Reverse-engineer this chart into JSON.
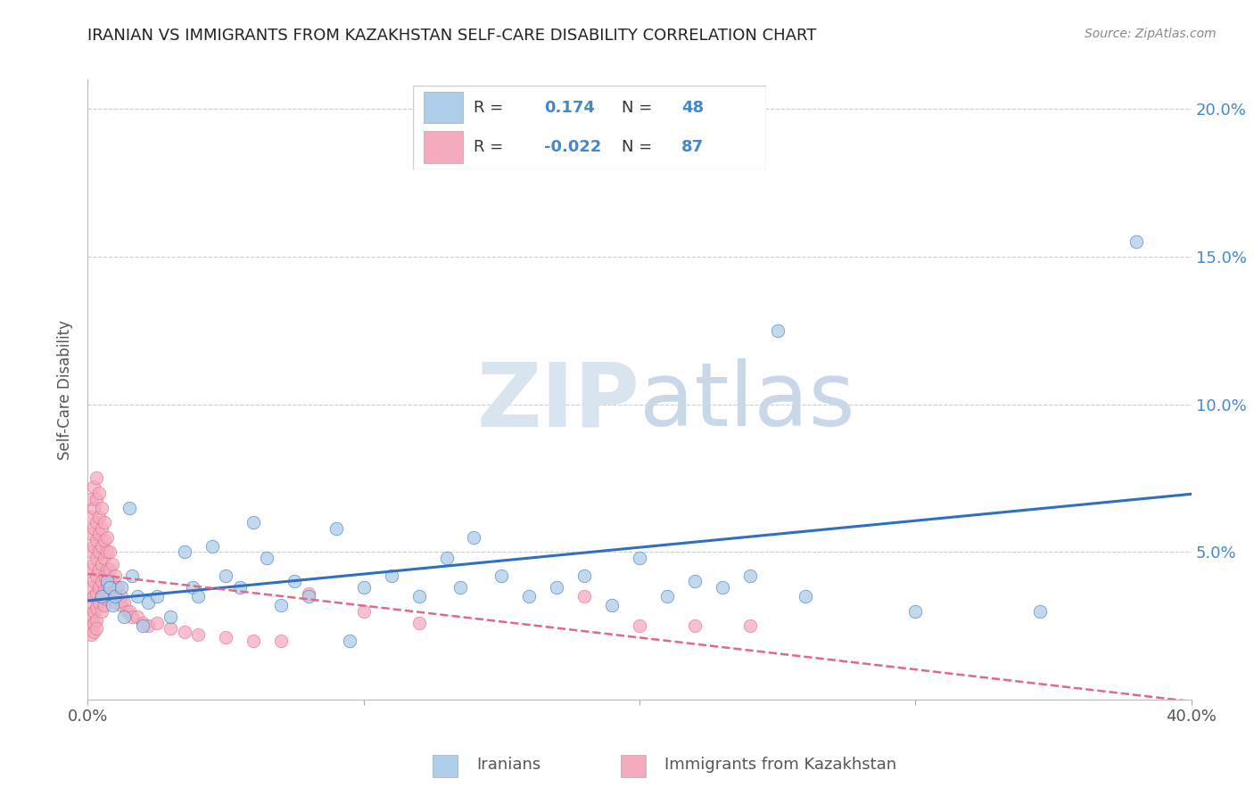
{
  "title": "IRANIAN VS IMMIGRANTS FROM KAZAKHSTAN SELF-CARE DISABILITY CORRELATION CHART",
  "source": "Source: ZipAtlas.com",
  "ylabel": "Self-Care Disability",
  "xlabel": "",
  "xlim": [
    0.0,
    0.4
  ],
  "ylim": [
    0.0,
    0.21
  ],
  "yticks": [
    0.0,
    0.05,
    0.1,
    0.15,
    0.2
  ],
  "ytick_labels": [
    "",
    "5.0%",
    "10.0%",
    "15.0%",
    "20.0%"
  ],
  "xticks": [
    0.0,
    0.1,
    0.2,
    0.3,
    0.4
  ],
  "xtick_labels": [
    "0.0%",
    "",
    "",
    "",
    "40.0%"
  ],
  "r_iranian": 0.174,
  "n_iranian": 48,
  "r_kazakh": -0.022,
  "n_kazakh": 87,
  "iranian_color": "#aecde8",
  "kazakh_color": "#f4abbe",
  "iranian_line_color": "#3070c0",
  "kazakh_line_color": "#e06888",
  "grid_color": "#cccccc",
  "title_color": "#222222",
  "axis_label_color": "#555555",
  "right_axis_color": "#4488cc",
  "watermark_zip_color": "#d8e4f0",
  "watermark_atlas_color": "#c8d8e8",
  "iranians_x": [
    0.005,
    0.007,
    0.008,
    0.009,
    0.01,
    0.012,
    0.013,
    0.015,
    0.016,
    0.018,
    0.02,
    0.022,
    0.025,
    0.03,
    0.035,
    0.038,
    0.04,
    0.045,
    0.05,
    0.055,
    0.06,
    0.065,
    0.07,
    0.075,
    0.08,
    0.09,
    0.095,
    0.1,
    0.11,
    0.12,
    0.13,
    0.135,
    0.14,
    0.15,
    0.16,
    0.17,
    0.18,
    0.19,
    0.2,
    0.21,
    0.22,
    0.23,
    0.24,
    0.25,
    0.26,
    0.3,
    0.345,
    0.38
  ],
  "iranians_y": [
    0.035,
    0.04,
    0.038,
    0.032,
    0.035,
    0.038,
    0.028,
    0.065,
    0.042,
    0.035,
    0.025,
    0.033,
    0.035,
    0.028,
    0.05,
    0.038,
    0.035,
    0.052,
    0.042,
    0.038,
    0.06,
    0.048,
    0.032,
    0.04,
    0.035,
    0.058,
    0.02,
    0.038,
    0.042,
    0.035,
    0.048,
    0.038,
    0.055,
    0.042,
    0.035,
    0.038,
    0.042,
    0.032,
    0.048,
    0.035,
    0.04,
    0.038,
    0.042,
    0.125,
    0.035,
    0.03,
    0.03,
    0.155
  ],
  "kazakh_x": [
    0.001,
    0.001,
    0.001,
    0.001,
    0.001,
    0.001,
    0.001,
    0.001,
    0.001,
    0.001,
    0.002,
    0.002,
    0.002,
    0.002,
    0.002,
    0.002,
    0.002,
    0.002,
    0.002,
    0.002,
    0.003,
    0.003,
    0.003,
    0.003,
    0.003,
    0.003,
    0.003,
    0.003,
    0.003,
    0.003,
    0.004,
    0.004,
    0.004,
    0.004,
    0.004,
    0.004,
    0.004,
    0.005,
    0.005,
    0.005,
    0.005,
    0.005,
    0.005,
    0.005,
    0.006,
    0.006,
    0.006,
    0.006,
    0.006,
    0.006,
    0.007,
    0.007,
    0.007,
    0.007,
    0.007,
    0.008,
    0.008,
    0.008,
    0.009,
    0.009,
    0.01,
    0.01,
    0.01,
    0.011,
    0.012,
    0.012,
    0.013,
    0.014,
    0.015,
    0.016,
    0.018,
    0.02,
    0.022,
    0.025,
    0.03,
    0.035,
    0.04,
    0.05,
    0.06,
    0.07,
    0.08,
    0.1,
    0.12,
    0.18,
    0.2,
    0.22,
    0.24
  ],
  "kazakh_y": [
    0.068,
    0.062,
    0.056,
    0.05,
    0.044,
    0.038,
    0.033,
    0.028,
    0.025,
    0.022,
    0.072,
    0.065,
    0.058,
    0.052,
    0.046,
    0.04,
    0.035,
    0.03,
    0.026,
    0.023,
    0.075,
    0.068,
    0.06,
    0.054,
    0.048,
    0.042,
    0.036,
    0.031,
    0.027,
    0.024,
    0.07,
    0.062,
    0.056,
    0.05,
    0.044,
    0.038,
    0.033,
    0.065,
    0.058,
    0.052,
    0.046,
    0.04,
    0.035,
    0.03,
    0.06,
    0.054,
    0.048,
    0.042,
    0.037,
    0.032,
    0.055,
    0.05,
    0.044,
    0.039,
    0.034,
    0.05,
    0.044,
    0.039,
    0.046,
    0.04,
    0.042,
    0.037,
    0.033,
    0.038,
    0.035,
    0.032,
    0.033,
    0.03,
    0.03,
    0.028,
    0.028,
    0.026,
    0.025,
    0.026,
    0.024,
    0.023,
    0.022,
    0.021,
    0.02,
    0.02,
    0.036,
    0.03,
    0.026,
    0.035,
    0.025,
    0.025,
    0.025
  ]
}
